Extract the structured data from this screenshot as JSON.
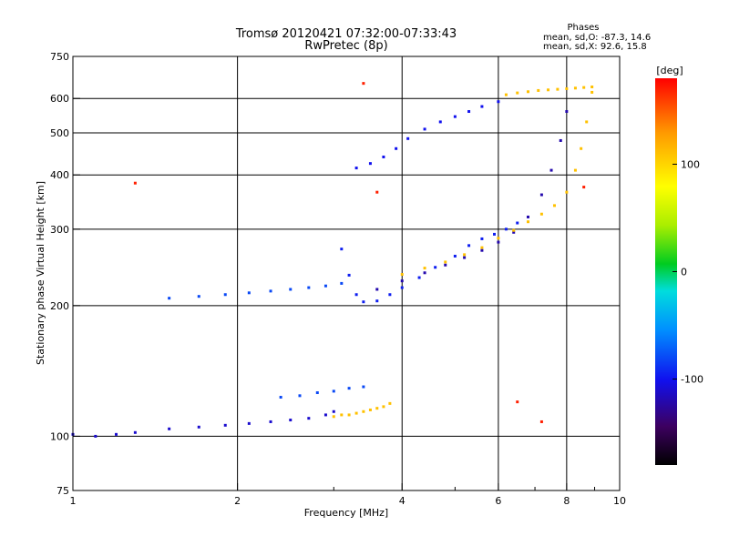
{
  "chart_data": {
    "type": "scatter",
    "title": "Tromsø 20120421 07:32:00-07:33:43",
    "subtitle": "RwPretec (8p)",
    "xlabel": "Frequency [MHz]",
    "ylabel": "Stationary phase Virtual Height [km]",
    "x_scale": "log",
    "y_scale": "log",
    "xlim": [
      1,
      10
    ],
    "ylim": [
      75,
      750
    ],
    "x_ticks": [
      1,
      2,
      4,
      6,
      8,
      10
    ],
    "x_tick_labels": [
      "1",
      "2",
      "4",
      "6",
      "8",
      "10"
    ],
    "y_ticks": [
      75,
      100,
      200,
      300,
      400,
      500,
      600,
      750
    ],
    "y_tick_labels": [
      "75",
      "100",
      "200",
      "300",
      "400",
      "500",
      "600",
      "750"
    ],
    "grid": true,
    "colorbar": {
      "label": "[deg]",
      "range": [
        -180,
        180
      ],
      "ticks": [
        100,
        0,
        -100
      ],
      "tick_labels": [
        "100",
        "0",
        "-100"
      ]
    },
    "annotation": {
      "title": "Phases",
      "line1": "mean, sd,O: -87.3, 14.6",
      "line2": "mean, sd,X:  92.6, 15.8"
    },
    "series": [
      {
        "x": [
          1.0,
          1.1,
          1.2,
          1.3,
          1.5,
          1.7,
          1.9,
          2.1,
          2.3,
          2.5,
          2.7,
          2.9,
          3.0
        ],
        "y": [
          101,
          100,
          101,
          102,
          104,
          105,
          106,
          107,
          108,
          109,
          110,
          112,
          114
        ],
        "phase": -110
      },
      {
        "x": [
          3.0,
          3.1,
          3.2,
          3.3,
          3.4,
          3.5,
          3.6,
          3.7,
          3.8
        ],
        "y": [
          111,
          112,
          112,
          113,
          114,
          115,
          116,
          117,
          119
        ],
        "phase": 110
      },
      {
        "x": [
          2.4,
          2.6,
          2.8,
          3.0,
          3.2,
          3.4
        ],
        "y": [
          123,
          124,
          126,
          127,
          129,
          130
        ],
        "phase": -80
      },
      {
        "x": [
          1.5,
          1.7,
          1.9,
          2.1,
          2.3,
          2.5,
          2.7,
          2.9,
          3.1
        ],
        "y": [
          208,
          210,
          212,
          214,
          216,
          218,
          220,
          222,
          225
        ],
        "phase": -80
      },
      {
        "x": [
          3.1,
          3.2,
          3.3,
          3.4,
          3.6,
          3.8,
          4.0,
          4.3,
          4.6,
          5.0,
          5.3,
          5.6,
          5.9,
          6.2,
          6.5
        ],
        "y": [
          270,
          235,
          212,
          204,
          205,
          212,
          220,
          232,
          245,
          260,
          275,
          285,
          292,
          300,
          310
        ],
        "phase": -95
      },
      {
        "x": [
          3.6,
          4.0,
          4.4,
          4.8,
          5.2,
          5.6,
          6.0,
          6.4,
          6.8,
          7.2,
          7.5,
          7.8,
          8.0
        ],
        "y": [
          218,
          228,
          238,
          248,
          258,
          268,
          280,
          295,
          320,
          360,
          410,
          480,
          560
        ],
        "phase": -120
      },
      {
        "x": [
          4.0,
          4.4,
          4.8,
          5.2,
          5.6,
          6.0,
          6.4,
          6.8,
          7.2,
          7.6,
          8.0,
          8.3,
          8.5,
          8.7,
          8.9
        ],
        "y": [
          236,
          244,
          252,
          262,
          272,
          286,
          298,
          312,
          325,
          340,
          365,
          410,
          460,
          530,
          620
        ],
        "phase": 110
      },
      {
        "x": [
          3.3,
          3.5,
          3.7,
          3.9,
          4.1,
          4.4,
          4.7,
          5.0,
          5.3,
          5.6,
          6.0
        ],
        "y": [
          415,
          425,
          440,
          460,
          485,
          510,
          530,
          545,
          560,
          575,
          590
        ],
        "phase": -100
      },
      {
        "x": [
          6.2,
          6.5,
          6.8,
          7.1,
          7.4,
          7.7,
          8.0,
          8.3,
          8.6,
          8.9
        ],
        "y": [
          612,
          618,
          622,
          626,
          628,
          630,
          632,
          634,
          636,
          638
        ],
        "phase": 110
      },
      {
        "x": [
          1.3,
          3.4,
          3.6,
          6.5,
          7.2,
          8.6
        ],
        "y": [
          383,
          650,
          365,
          120,
          108,
          375
        ],
        "phase": 170
      }
    ]
  }
}
